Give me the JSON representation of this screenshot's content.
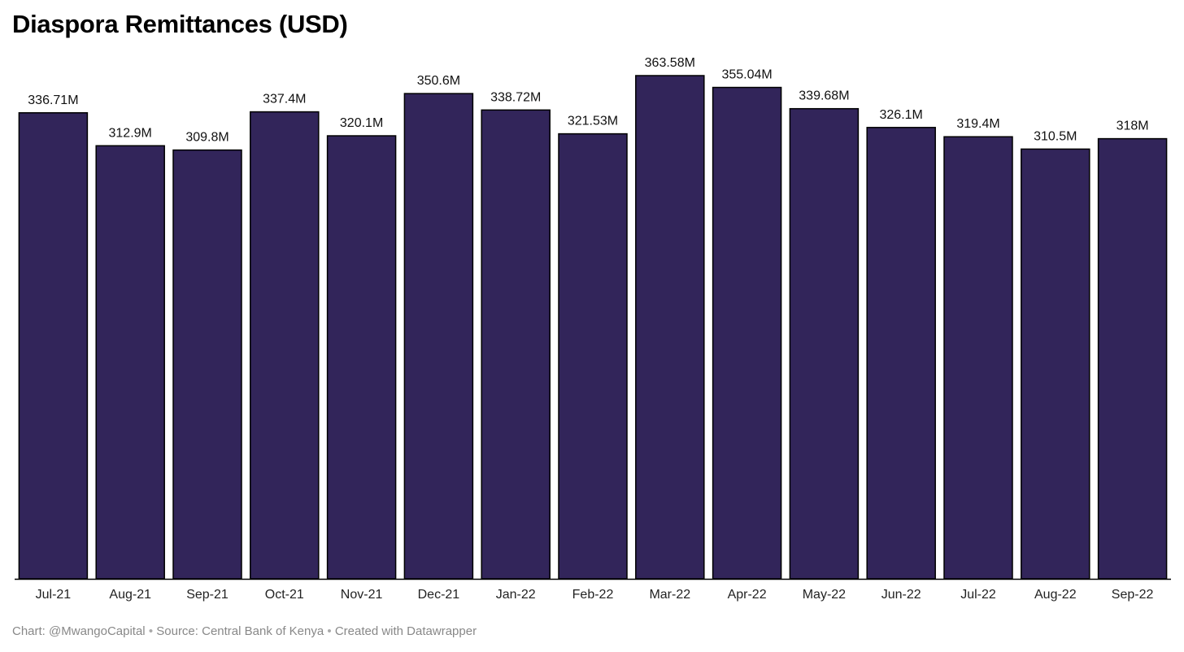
{
  "chart_data": {
    "type": "bar",
    "title": "Diaspora Remittances (USD)",
    "categories": [
      "Jul-21",
      "Aug-21",
      "Sep-21",
      "Oct-21",
      "Nov-21",
      "Dec-21",
      "Jan-22",
      "Feb-22",
      "Mar-22",
      "Apr-22",
      "May-22",
      "Jun-22",
      "Jul-22",
      "Aug-22",
      "Sep-22"
    ],
    "values": [
      336.71,
      312.9,
      309.8,
      337.4,
      320.1,
      350.6,
      338.72,
      321.53,
      363.58,
      355.04,
      339.68,
      326.1,
      319.4,
      310.5,
      318
    ],
    "value_labels": [
      "336.71M",
      "312.9M",
      "309.8M",
      "337.4M",
      "320.1M",
      "350.6M",
      "338.72M",
      "321.53M",
      "363.58M",
      "355.04M",
      "339.68M",
      "326.1M",
      "319.4M",
      "310.5M",
      "318M"
    ],
    "unit": "M",
    "ylim": [
      0,
      363.58
    ],
    "xlabel": "",
    "ylabel": "",
    "grid": false,
    "bar_color": "#32255a",
    "bar_stroke": "#000000"
  },
  "footer": {
    "chart_credit": "Chart: @MwangoCapital",
    "separator": "•",
    "source": "Source: Central Bank of Kenya",
    "created_with": "Created with Datawrapper"
  }
}
